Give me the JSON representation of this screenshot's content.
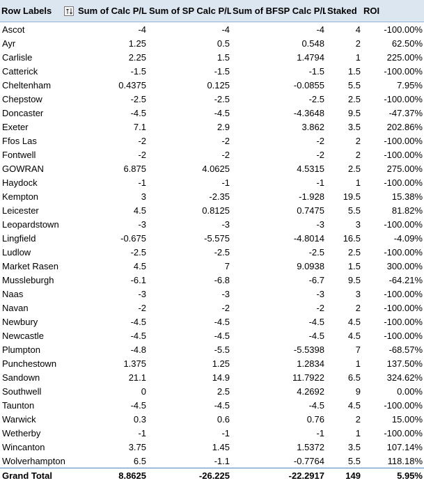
{
  "headers": {
    "row_labels": "Row Labels",
    "sum_calc": "Sum of Calc P/L",
    "sum_sp": "Sum of SP Calc P/L",
    "sum_bfsp": "Sum of BFSP Calc P/L",
    "staked": "Staked",
    "roi": "ROI"
  },
  "rows": [
    [
      "Ascot",
      "-4",
      "-4",
      "-4",
      "4",
      "-100.00%"
    ],
    [
      "Ayr",
      "1.25",
      "0.5",
      "0.548",
      "2",
      "62.50%"
    ],
    [
      "Carlisle",
      "2.25",
      "1.5",
      "1.4794",
      "1",
      "225.00%"
    ],
    [
      "Catterick",
      "-1.5",
      "-1.5",
      "-1.5",
      "1.5",
      "-100.00%"
    ],
    [
      "Cheltenham",
      "0.4375",
      "0.125",
      "-0.0855",
      "5.5",
      "7.95%"
    ],
    [
      "Chepstow",
      "-2.5",
      "-2.5",
      "-2.5",
      "2.5",
      "-100.00%"
    ],
    [
      "Doncaster",
      "-4.5",
      "-4.5",
      "-4.3648",
      "9.5",
      "-47.37%"
    ],
    [
      "Exeter",
      "7.1",
      "2.9",
      "3.862",
      "3.5",
      "202.86%"
    ],
    [
      "Ffos Las",
      "-2",
      "-2",
      "-2",
      "2",
      "-100.00%"
    ],
    [
      "Fontwell",
      "-2",
      "-2",
      "-2",
      "2",
      "-100.00%"
    ],
    [
      "GOWRAN",
      "6.875",
      "4.0625",
      "4.5315",
      "2.5",
      "275.00%"
    ],
    [
      "Haydock",
      "-1",
      "-1",
      "-1",
      "1",
      "-100.00%"
    ],
    [
      "Kempton",
      "3",
      "-2.35",
      "-1.928",
      "19.5",
      "15.38%"
    ],
    [
      "Leicester",
      "4.5",
      "0.8125",
      "0.7475",
      "5.5",
      "81.82%"
    ],
    [
      "Leopardstown",
      "-3",
      "-3",
      "-3",
      "3",
      "-100.00%"
    ],
    [
      "Lingfield",
      "-0.675",
      "-5.575",
      "-4.8014",
      "16.5",
      "-4.09%"
    ],
    [
      "Ludlow",
      "-2.5",
      "-2.5",
      "-2.5",
      "2.5",
      "-100.00%"
    ],
    [
      "Market Rasen",
      "4.5",
      "7",
      "9.0938",
      "1.5",
      "300.00%"
    ],
    [
      "Mussleburgh",
      "-6.1",
      "-6.8",
      "-6.7",
      "9.5",
      "-64.21%"
    ],
    [
      "Naas",
      "-3",
      "-3",
      "-3",
      "3",
      "-100.00%"
    ],
    [
      "Navan",
      "-2",
      "-2",
      "-2",
      "2",
      "-100.00%"
    ],
    [
      "Newbury",
      "-4.5",
      "-4.5",
      "-4.5",
      "4.5",
      "-100.00%"
    ],
    [
      "Newcastle",
      "-4.5",
      "-4.5",
      "-4.5",
      "4.5",
      "-100.00%"
    ],
    [
      "Plumpton",
      "-4.8",
      "-5.5",
      "-5.5398",
      "7",
      "-68.57%"
    ],
    [
      "Punchestown",
      "1.375",
      "1.25",
      "1.2834",
      "1",
      "137.50%"
    ],
    [
      "Sandown",
      "21.1",
      "14.9",
      "11.7922",
      "6.5",
      "324.62%"
    ],
    [
      "Southwell",
      "0",
      "2.5",
      "4.2692",
      "9",
      "0.00%"
    ],
    [
      "Taunton",
      "-4.5",
      "-4.5",
      "-4.5",
      "4.5",
      "-100.00%"
    ],
    [
      "Warwick",
      "0.3",
      "0.6",
      "0.76",
      "2",
      "15.00%"
    ],
    [
      "Wetherby",
      "-1",
      "-1",
      "-1",
      "1",
      "-100.00%"
    ],
    [
      "Wincanton",
      "3.75",
      "1.45",
      "1.5372",
      "3.5",
      "107.14%"
    ],
    [
      "Wolverhampton",
      "6.5",
      "-1.1",
      "-0.7764",
      "5.5",
      "118.18%"
    ]
  ],
  "grand_total": [
    "Grand Total",
    "8.8625",
    "-26.225",
    "-22.2917",
    "149",
    "5.95%"
  ],
  "colors": {
    "header_bg": "#dce6f1",
    "header_border": "#95b3d7",
    "total_border": "#4f81bd"
  },
  "icons": {
    "filter": "filter-sort-icon"
  }
}
